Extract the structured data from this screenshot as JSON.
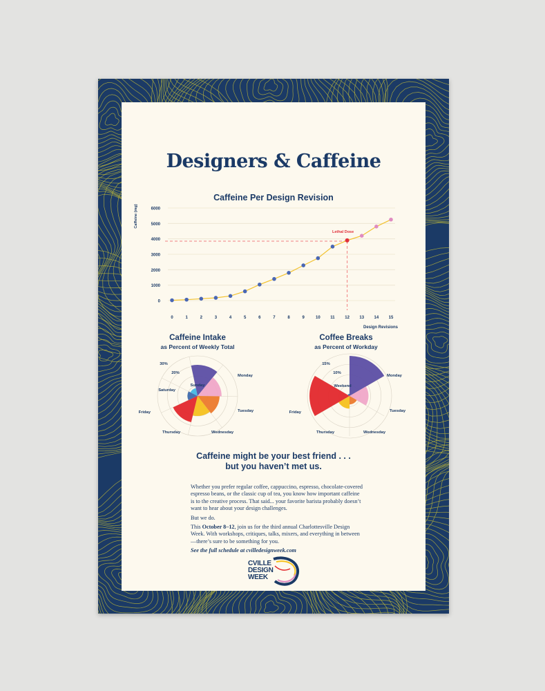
{
  "poster": {
    "title": "Designers & Caffeine",
    "headline_line1": "Caffeine might be your best friend . . .",
    "headline_line2": "but you haven’t met us.",
    "body_p1": "Whether you prefer regular coffee, cappuccino, espresso, chocolate-covered espresso beans, or the classic cup of tea, you know how important caffeine is to the creative process. That said... your favorite barista probably doesn’t want to hear about your design challenges.",
    "body_p2": "But we do.",
    "body_p3_a": "This ",
    "body_p3_dates": "October 8–12",
    "body_p3_b": ", join us for the third annual Charlottesville Design Week. With workshops, critiques, talks, mixers, and everything in between—there’s sure to be something for you.",
    "body_p4": "See the full schedule at cvilledesignweek.com",
    "logo_line1": "CVILLE",
    "logo_line2": "DESIGN",
    "logo_line3": "WEEK",
    "colors": {
      "navy": "#1b3a66",
      "topo_line": "#b9b43a",
      "paper": "#fdf9ee"
    }
  },
  "chart_data": [
    {
      "type": "line",
      "title": "Caffeine Per Design Revision",
      "xlabel": "Design Revisions",
      "ylabel": "Caffeine (mg)",
      "x": [
        0,
        1,
        2,
        3,
        4,
        5,
        6,
        7,
        8,
        9,
        10,
        11,
        12,
        13,
        14,
        15
      ],
      "y": [
        20,
        60,
        120,
        180,
        300,
        600,
        1040,
        1400,
        1800,
        2280,
        2750,
        3500,
        3900,
        4200,
        4800,
        5250
      ],
      "xlim": [
        0,
        15
      ],
      "ylim": [
        0,
        6000
      ],
      "yticks": [
        0,
        1000,
        2000,
        3000,
        4000,
        5000,
        6000
      ],
      "xticks": [
        0,
        1,
        2,
        3,
        4,
        5,
        6,
        7,
        8,
        9,
        10,
        11,
        12,
        13,
        14,
        15
      ],
      "grid": true,
      "annotation": {
        "label": "Lethal Dose",
        "x": 12,
        "y": 3850
      },
      "colors": {
        "line": "#f2c230",
        "point": "#4a67b4",
        "after_lethal": "#e08cc0",
        "lethal": "#e0303a",
        "guide": "#f08080"
      }
    },
    {
      "type": "polar-area",
      "title": "Caffeine Intake",
      "subtitle": "as Percent of Weekly Total",
      "categories": [
        "Monday",
        "Tuesday",
        "Wednesday",
        "Thursday",
        "Friday",
        "Saturday",
        "Sunday"
      ],
      "values": [
        31,
        24,
        22,
        20,
        27,
        10,
        8
      ],
      "ring_labels": [
        "20%",
        "30%"
      ],
      "colors": [
        "#5c4ea4",
        "#f0a6c8",
        "#ec7a2c",
        "#f6c11d",
        "#e3282c",
        "#3f6aad",
        "#44b8e4"
      ]
    },
    {
      "type": "polar-area",
      "title": "Coffee Breaks",
      "subtitle": "as Percent of Workday",
      "categories": [
        "Monday",
        "Tuesday",
        "Wednesday",
        "Thursday",
        "Friday",
        "Weekend"
      ],
      "values": [
        19,
        9,
        4,
        6,
        19,
        1
      ],
      "ring_labels": [
        "10%",
        "15%"
      ],
      "colors": [
        "#5c4ea4",
        "#f0a6c8",
        "#ec7a2c",
        "#f6c11d",
        "#e3282c",
        "#3f6aad"
      ]
    }
  ]
}
